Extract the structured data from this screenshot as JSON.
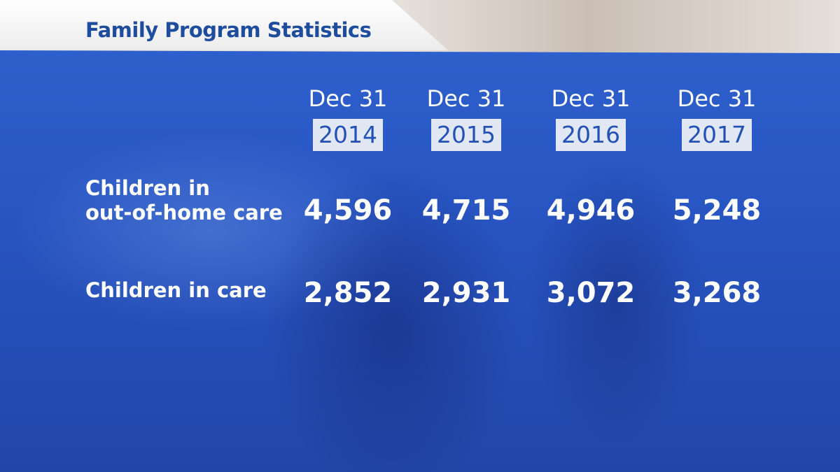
{
  "header": {
    "title": "Family Program Statistics"
  },
  "table": {
    "columns": [
      {
        "date": "Dec 31",
        "year": "2014"
      },
      {
        "date": "Dec 31",
        "year": "2015"
      },
      {
        "date": "Dec 31",
        "year": "2016"
      },
      {
        "date": "Dec 31",
        "year": "2017"
      }
    ],
    "rows": [
      {
        "label": [
          "Children in",
          "out-of-home care"
        ],
        "values": [
          "4,596",
          "4,715",
          "4,946",
          "5,248"
        ]
      },
      {
        "label": [
          "Children in care"
        ],
        "values": [
          "2,852",
          "2,931",
          "3,072",
          "3,268"
        ]
      }
    ]
  }
}
